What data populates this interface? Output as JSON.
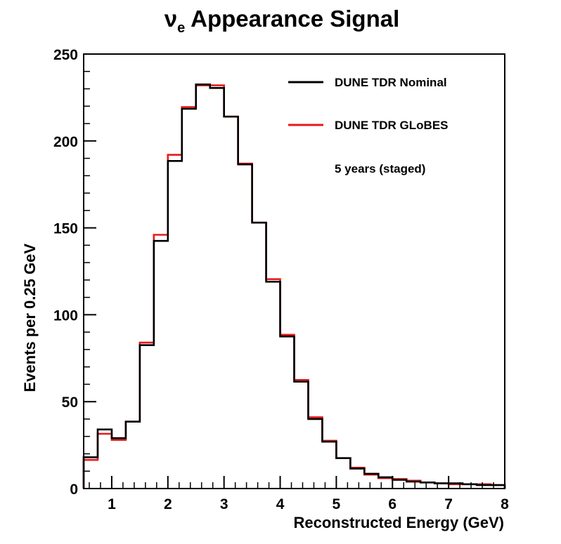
{
  "chart_data": {
    "type": "line",
    "title_symbol": "ν",
    "title_subscript": "e",
    "title_rest": " Appearance Signal",
    "xlabel": "Reconstructed Energy (GeV)",
    "ylabel": "Events per 0.25 GeV",
    "xlim": [
      0.5,
      8
    ],
    "ylim": [
      0,
      250
    ],
    "x_ticks": [
      1,
      2,
      3,
      4,
      5,
      6,
      7,
      8
    ],
    "x_tick_labels": [
      "1",
      "2",
      "3",
      "4",
      "5",
      "6",
      "7",
      "8"
    ],
    "y_ticks": [
      0,
      50,
      100,
      150,
      200,
      250
    ],
    "y_tick_labels": [
      "0",
      "50",
      "100",
      "150",
      "200",
      "250"
    ],
    "bin_width": 0.25,
    "bin_edges": [
      0.5,
      0.75,
      1.0,
      1.25,
      1.5,
      1.75,
      2.0,
      2.25,
      2.5,
      2.75,
      3.0,
      3.25,
      3.5,
      3.75,
      4.0,
      4.25,
      4.5,
      4.75,
      5.0,
      5.25,
      5.5,
      5.75,
      6.0,
      6.25,
      6.5,
      6.75,
      7.0,
      7.25,
      7.5,
      7.75,
      8.0
    ],
    "series": [
      {
        "name": "DUNE TDR GLoBES",
        "color": "#e8191a",
        "values": [
          16.5,
          31.5,
          28,
          38.5,
          84,
          146,
          192,
          219.5,
          232,
          232,
          214,
          187,
          153,
          120.5,
          88.5,
          62.5,
          41,
          27.5,
          17.5,
          12,
          8,
          6,
          5.5,
          4.5,
          3.5,
          3,
          2.5,
          2.5,
          2.5,
          2
        ]
      },
      {
        "name": "DUNE TDR Nominal",
        "color": "#000000",
        "values": [
          18,
          34,
          29,
          38.5,
          82.5,
          142.5,
          188.5,
          218.5,
          232.5,
          230.5,
          214,
          186.5,
          153,
          119,
          87.5,
          61.5,
          40,
          27,
          17.5,
          11.5,
          8.5,
          6.5,
          5,
          4,
          3.5,
          3,
          3,
          2.5,
          2,
          2
        ]
      }
    ],
    "legend_placement": "top-right",
    "legend_order": [
      "DUNE TDR Nominal",
      "DUNE TDR GLoBES"
    ],
    "annotation": "5 years (staged)",
    "grid": false
  }
}
